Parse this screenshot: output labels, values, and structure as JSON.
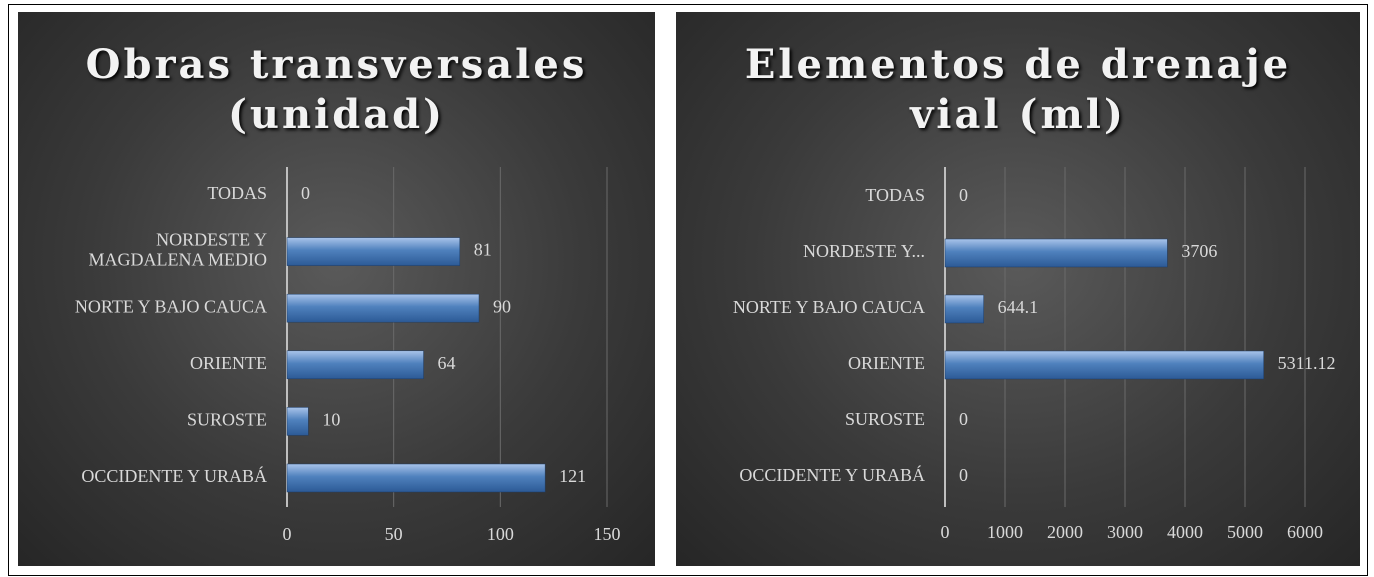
{
  "chart_data": [
    {
      "type": "hbar",
      "title": "Obras transversales (unidad)",
      "categories": [
        "TODAS",
        "NORDESTE Y MAGDALENA MEDIO",
        "NORTE Y BAJO CAUCA",
        "ORIENTE",
        "SUROSTE",
        "OCCIDENTE Y URABÁ"
      ],
      "values": [
        0,
        81,
        90,
        64,
        10,
        121
      ],
      "color": "#4f81bd",
      "xlim": [
        0,
        150
      ],
      "xticks": [
        0,
        50,
        100,
        150
      ],
      "grid": true
    },
    {
      "type": "hbar",
      "title": "Elementos de drenaje vial (ml)",
      "categories": [
        "TODAS",
        "NORDESTE Y...",
        "NORTE Y BAJO CAUCA",
        "ORIENTE",
        "SUROSTE",
        "OCCIDENTE Y URABÁ"
      ],
      "values": [
        0,
        3706,
        644.1,
        5311.12,
        0,
        0
      ],
      "color": "#4f81bd",
      "xlim": [
        0,
        6000
      ],
      "xticks": [
        0,
        1000,
        2000,
        3000,
        4000,
        5000,
        6000
      ],
      "grid": true
    }
  ]
}
